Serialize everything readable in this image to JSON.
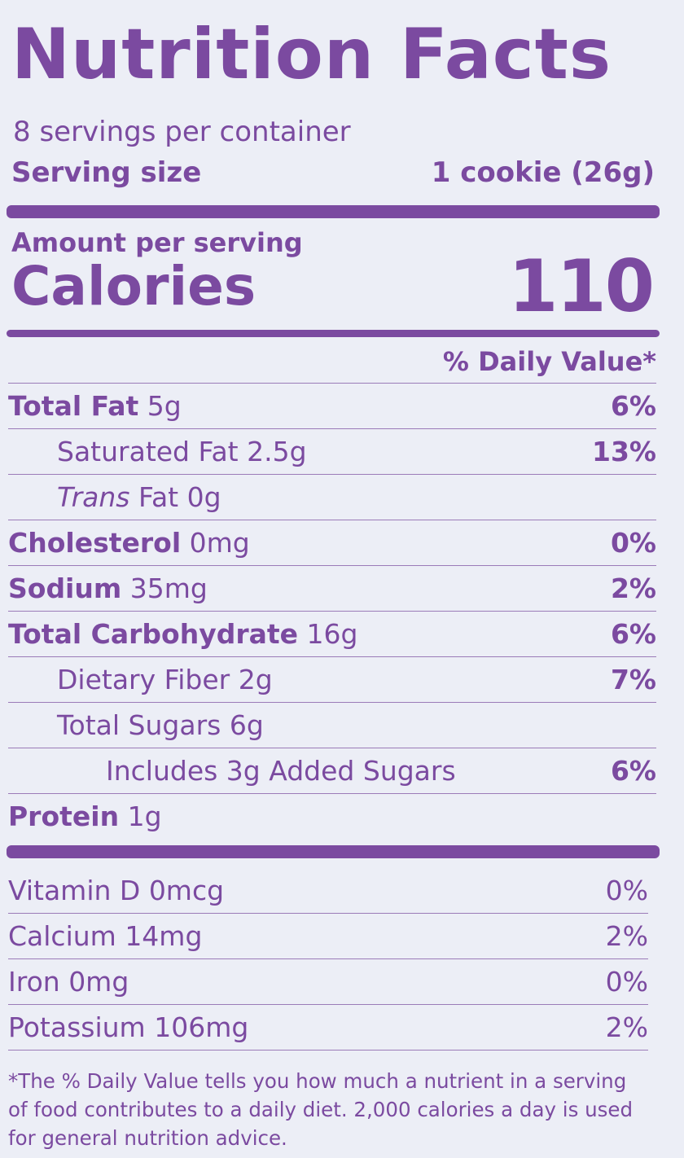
{
  "title": "Nutrition Facts",
  "servings_per_container": "8 servings per container",
  "serving_size": {
    "label": "Serving size",
    "value": "1 cookie (26g)"
  },
  "amount_per_serving": "Amount per serving",
  "calories": {
    "label": "Calories",
    "value": "110"
  },
  "daily_value_header": "% Daily Value*",
  "nutrients": [
    {
      "name": "Total Fat",
      "amount": "5g",
      "daily_value": "6%"
    },
    {
      "name": "Saturated Fat",
      "amount": "2.5g",
      "daily_value": "13%"
    },
    {
      "name_italic": "Trans",
      "name": "Fat",
      "amount": "0g"
    },
    {
      "name": "Cholesterol",
      "amount": "0mg",
      "daily_value": "0%"
    },
    {
      "name": "Sodium",
      "amount": "35mg",
      "daily_value": "2%"
    },
    {
      "name": "Total Carbohydrate",
      "amount": "16g",
      "daily_value": "6%"
    },
    {
      "name": "Dietary Fiber",
      "amount": "2g",
      "daily_value": "7%"
    },
    {
      "name": "Total Sugars",
      "amount": "6g"
    },
    {
      "name": "Includes 3g Added Sugars",
      "daily_value": "6%"
    },
    {
      "name": "Protein",
      "amount": "1g"
    }
  ],
  "vitamins": [
    {
      "name": "Vitamin D",
      "amount": "0mcg",
      "daily_value": "0%"
    },
    {
      "name": "Calcium",
      "amount": "14mg",
      "daily_value": "2%"
    },
    {
      "name": "Iron",
      "amount": "0mg",
      "daily_value": "0%"
    },
    {
      "name": "Potassium",
      "amount": "106mg",
      "daily_value": "2%"
    }
  ],
  "footnote": "*The % Daily Value tells you how much a nutrient in a serving of food contributes to a daily diet. 2,000 calories a day is used for general nutrition advice."
}
